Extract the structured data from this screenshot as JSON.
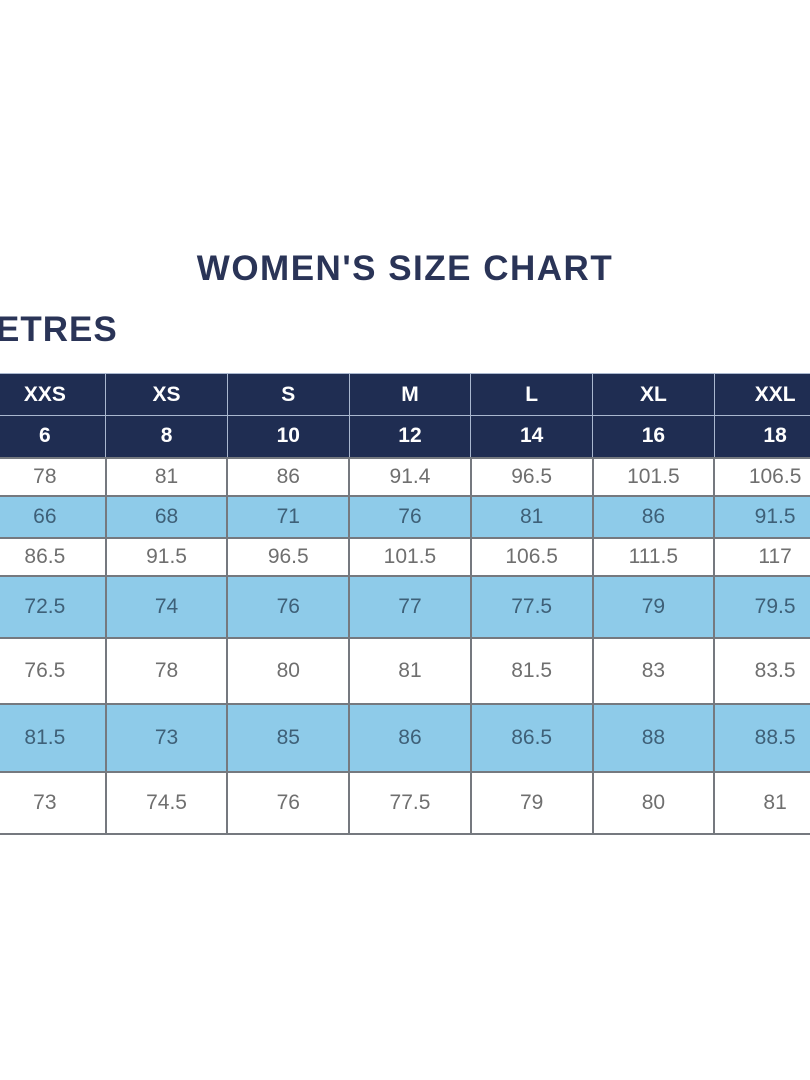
{
  "header": {
    "title": "WOMEN'S SIZE CHART",
    "unit_label_visible": "ETRES"
  },
  "size_chart": {
    "size_names": [
      "XXS",
      "XS",
      "S",
      "M",
      "L",
      "XL",
      "XXL"
    ],
    "size_numbers": [
      "6",
      "8",
      "10",
      "12",
      "14",
      "16",
      "18"
    ],
    "measurement_rows": [
      [
        "78",
        "81",
        "86",
        "91.4",
        "96.5",
        "101.5",
        "106.5"
      ],
      [
        "66",
        "68",
        "71",
        "76",
        "81",
        "86",
        "91.5"
      ],
      [
        "86.5",
        "91.5",
        "96.5",
        "101.5",
        "106.5",
        "111.5",
        "117"
      ],
      [
        "72.5",
        "74",
        "76",
        "77",
        "77.5",
        "79",
        "79.5"
      ],
      [
        "76.5",
        "78",
        "80",
        "81",
        "81.5",
        "83",
        "83.5"
      ],
      [
        "81.5",
        "73",
        "85",
        "86",
        "86.5",
        "88",
        "88.5"
      ],
      [
        "73",
        "74.5",
        "76",
        "77.5",
        "79",
        "80",
        "81"
      ]
    ],
    "colors": {
      "header_bg": "#1f2d52",
      "header_text": "#ffffff",
      "alt_row_bg": "#8ecbe9",
      "alt_row_text": "#3e6078",
      "plain_row_text": "#6f6f6f",
      "title_text": "#2a3457"
    }
  }
}
